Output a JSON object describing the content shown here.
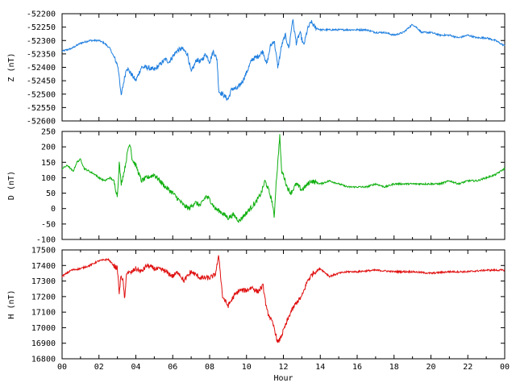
{
  "chart_data": [
    {
      "type": "line",
      "ylabel": "Z (nT)",
      "color": "#1f7fdf",
      "ylim": [
        -52600,
        -52200
      ],
      "yticks": [
        -52200,
        -52250,
        -52300,
        -52350,
        -52400,
        -52450,
        -52500,
        -52550,
        -52600
      ],
      "xlim": [
        0,
        24
      ],
      "x": [
        0,
        0.5,
        1,
        1.5,
        2,
        2.3,
        2.6,
        2.8,
        3.0,
        3.1,
        3.2,
        3.3,
        3.5,
        3.7,
        4.0,
        4.3,
        4.6,
        5.0,
        5.3,
        5.6,
        5.8,
        6.0,
        6.2,
        6.5,
        6.8,
        7.0,
        7.3,
        7.5,
        7.8,
        8.0,
        8.2,
        8.4,
        8.5,
        8.7,
        9.0,
        9.2,
        9.5,
        9.8,
        10.0,
        10.3,
        10.6,
        10.9,
        11.1,
        11.3,
        11.5,
        11.7,
        11.9,
        12.1,
        12.3,
        12.5,
        12.7,
        12.9,
        13.1,
        13.3,
        13.5,
        13.7,
        14.0,
        14.5,
        15.0,
        15.5,
        16.0,
        16.5,
        17.0,
        17.5,
        18.0,
        18.5,
        19.0,
        19.2,
        19.5,
        20.0,
        20.5,
        21.0,
        21.5,
        22.0,
        22.5,
        23.0,
        23.5,
        24.0
      ],
      "y": [
        -52340,
        -52330,
        -52310,
        -52300,
        -52300,
        -52310,
        -52330,
        -52360,
        -52390,
        -52430,
        -52510,
        -52470,
        -52400,
        -52420,
        -52450,
        -52400,
        -52400,
        -52410,
        -52390,
        -52370,
        -52380,
        -52360,
        -52340,
        -52330,
        -52350,
        -52420,
        -52370,
        -52380,
        -52350,
        -52380,
        -52340,
        -52370,
        -52490,
        -52500,
        -52520,
        -52480,
        -52480,
        -52450,
        -52420,
        -52370,
        -52360,
        -52340,
        -52390,
        -52320,
        -52300,
        -52400,
        -52320,
        -52280,
        -52330,
        -52220,
        -52310,
        -52270,
        -52320,
        -52260,
        -52230,
        -52250,
        -52260,
        -52260,
        -52260,
        -52260,
        -52260,
        -52260,
        -52270,
        -52270,
        -52280,
        -52270,
        -52240,
        -52250,
        -52270,
        -52270,
        -52280,
        -52280,
        -52290,
        -52280,
        -52290,
        -52290,
        -52300,
        -52320
      ]
    },
    {
      "type": "line",
      "ylabel": "D (nT)",
      "color": "#10b010",
      "ylim": [
        -100,
        250
      ],
      "yticks": [
        250,
        200,
        150,
        100,
        50,
        0,
        -50,
        -100
      ],
      "xlim": [
        0,
        24
      ],
      "x": [
        0,
        0.3,
        0.6,
        0.8,
        1.0,
        1.2,
        1.5,
        1.8,
        2.0,
        2.3,
        2.6,
        2.8,
        3.0,
        3.1,
        3.2,
        3.4,
        3.6,
        3.7,
        3.8,
        4.0,
        4.3,
        4.6,
        5.0,
        5.3,
        5.6,
        6.0,
        6.3,
        6.6,
        6.9,
        7.2,
        7.5,
        7.8,
        8.0,
        8.3,
        8.6,
        8.8,
        9.0,
        9.3,
        9.6,
        9.9,
        10.2,
        10.5,
        10.8,
        11.0,
        11.2,
        11.4,
        11.5,
        11.6,
        11.7,
        11.8,
        11.9,
        12.0,
        12.2,
        12.4,
        12.7,
        13.0,
        13.5,
        14.0,
        14.5,
        15.0,
        15.5,
        16.0,
        16.5,
        17.0,
        17.5,
        18.0,
        18.5,
        19.0,
        19.5,
        20.0,
        20.5,
        21.0,
        21.5,
        22.0,
        22.5,
        23.0,
        23.5,
        24.0
      ],
      "y": [
        130,
        140,
        120,
        150,
        160,
        130,
        120,
        110,
        100,
        90,
        100,
        90,
        40,
        150,
        80,
        130,
        200,
        210,
        160,
        140,
        90,
        100,
        110,
        90,
        70,
        50,
        30,
        10,
        0,
        20,
        10,
        40,
        30,
        0,
        -10,
        -20,
        -30,
        -20,
        -40,
        -20,
        0,
        20,
        50,
        90,
        60,
        20,
        -30,
        80,
        150,
        240,
        120,
        110,
        70,
        50,
        80,
        60,
        90,
        80,
        90,
        80,
        70,
        70,
        70,
        80,
        70,
        80,
        80,
        80,
        80,
        80,
        80,
        90,
        80,
        90,
        90,
        100,
        110,
        130
      ]
    },
    {
      "type": "line",
      "ylabel": "H (nT)",
      "xlabel": "Hour",
      "color": "#e01010",
      "ylim": [
        16800,
        17500
      ],
      "yticks": [
        17500,
        17400,
        17300,
        17200,
        17100,
        17000,
        16900,
        16800
      ],
      "xlim": [
        0,
        24
      ],
      "xticks": [
        "00",
        "02",
        "04",
        "06",
        "08",
        "10",
        "12",
        "14",
        "16",
        "18",
        "20",
        "22",
        "00"
      ],
      "x": [
        0,
        0.5,
        1,
        1.5,
        2,
        2.5,
        2.8,
        3.0,
        3.1,
        3.2,
        3.3,
        3.4,
        3.5,
        3.7,
        4.0,
        4.3,
        4.6,
        5.0,
        5.5,
        6.0,
        6.3,
        6.6,
        7.0,
        7.5,
        8.0,
        8.3,
        8.5,
        8.7,
        9.0,
        9.3,
        9.6,
        10.0,
        10.3,
        10.6,
        10.9,
        11.1,
        11.3,
        11.5,
        11.7,
        11.9,
        12.1,
        12.4,
        12.7,
        13.0,
        13.3,
        13.6,
        14.0,
        14.5,
        15.0,
        15.5,
        16.0,
        17.0,
        18.0,
        19.0,
        20.0,
        21.0,
        22.0,
        23.0,
        24.0
      ],
      "y": [
        17330,
        17370,
        17380,
        17400,
        17430,
        17440,
        17400,
        17380,
        17220,
        17340,
        17300,
        17180,
        17360,
        17350,
        17380,
        17360,
        17400,
        17380,
        17370,
        17330,
        17360,
        17300,
        17360,
        17320,
        17320,
        17340,
        17460,
        17200,
        17140,
        17200,
        17240,
        17240,
        17260,
        17230,
        17270,
        17110,
        17060,
        17000,
        16900,
        16950,
        17010,
        17100,
        17160,
        17200,
        17300,
        17350,
        17380,
        17330,
        17350,
        17360,
        17360,
        17370,
        17360,
        17360,
        17350,
        17360,
        17360,
        17370,
        17370
      ]
    }
  ]
}
